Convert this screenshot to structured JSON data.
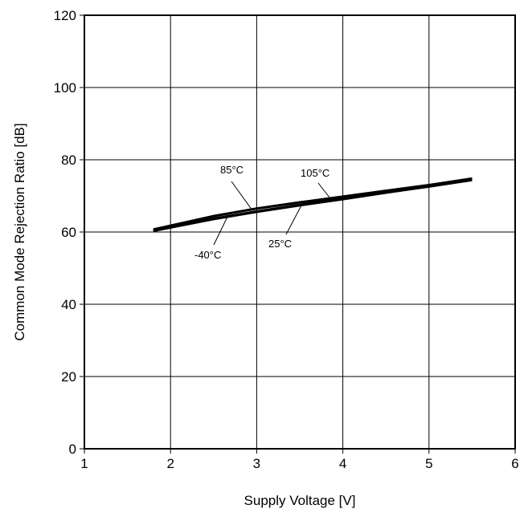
{
  "chart_data": {
    "type": "line",
    "title": "",
    "xlabel": "Supply Voltage [V]",
    "ylabel": "Common Mode Rejection Ratio [dB]",
    "xlim": [
      1,
      6
    ],
    "ylim": [
      0,
      120
    ],
    "xticks": [
      1,
      2,
      3,
      4,
      5,
      6
    ],
    "yticks": [
      0,
      20,
      40,
      60,
      80,
      100,
      120
    ],
    "xtick_labels": [
      "1",
      "2",
      "3",
      "4",
      "5",
      "6"
    ],
    "ytick_labels": [
      "0",
      "20",
      "40",
      "60",
      "80",
      "100",
      "120"
    ],
    "grid": true,
    "legend": "none",
    "series": [
      {
        "name": "-40°C",
        "x": [
          1.8,
          2.5,
          3.0,
          3.5,
          4.0,
          4.5,
          5.0,
          5.5
        ],
        "y": [
          60.2,
          63.5,
          65.5,
          67.3,
          69.0,
          70.8,
          72.5,
          74.3
        ]
      },
      {
        "name": "25°C",
        "x": [
          1.8,
          2.5,
          3.0,
          3.5,
          4.0,
          4.5,
          5.0,
          5.5
        ],
        "y": [
          60.4,
          63.8,
          65.8,
          67.6,
          69.3,
          71.0,
          72.7,
          74.5
        ]
      },
      {
        "name": "85°C",
        "x": [
          1.8,
          2.5,
          3.0,
          3.5,
          4.0,
          4.5,
          5.0,
          5.5
        ],
        "y": [
          60.7,
          64.3,
          66.4,
          68.1,
          69.7,
          71.3,
          73.0,
          74.8
        ]
      },
      {
        "name": "105°C",
        "x": [
          1.8,
          2.5,
          3.0,
          3.5,
          4.0,
          4.5,
          5.0,
          5.5
        ],
        "y": [
          60.8,
          64.5,
          66.6,
          68.3,
          69.9,
          71.5,
          73.1,
          74.9
        ]
      }
    ],
    "annotations": [
      {
        "text": "85°C"
      },
      {
        "text": "105°C"
      },
      {
        "text": "-40°C"
      },
      {
        "text": "25°C"
      }
    ]
  }
}
